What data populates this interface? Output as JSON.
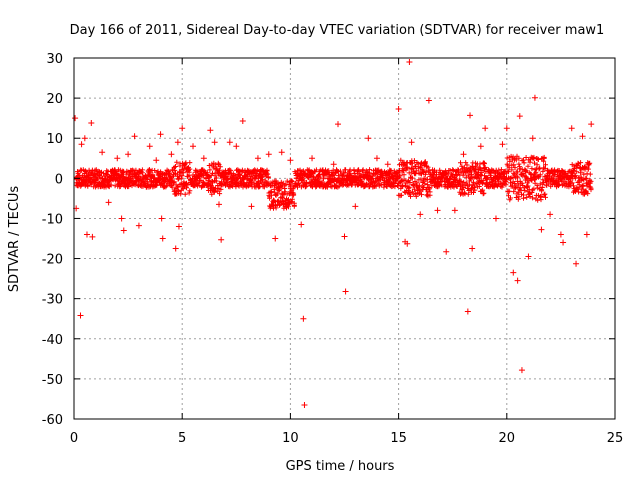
{
  "chart_data": {
    "type": "scatter",
    "title": "Day 166 of 2011, Sidereal Day-to-day VTEC variation (SDTVAR) for receiver maw1",
    "xlabel": "GPS time / hours",
    "ylabel": "SDTVAR / TECUs",
    "xlim": [
      0,
      25
    ],
    "ylim": [
      -60,
      30
    ],
    "x_ticks": [
      0,
      5,
      10,
      15,
      20,
      25
    ],
    "y_ticks": [
      30,
      20,
      10,
      0,
      -10,
      -20,
      -30,
      -40,
      -50,
      -60
    ],
    "x_tick_labels": [
      "0",
      "5",
      "10",
      "15",
      "20",
      "25"
    ],
    "y_tick_labels": [
      "30",
      "20",
      "10",
      "0",
      "-10",
      "-20",
      "-30",
      "-40",
      "-50",
      "-60"
    ],
    "grid": true,
    "marker": "plus",
    "color": "#ff0000",
    "series": [
      {
        "name": "SDTVAR",
        "core_band_note": "dense band of points between about -3 and +3 TECU across 0-24 h",
        "points": [
          [
            0.05,
            15
          ],
          [
            0.1,
            -7.5
          ],
          [
            0.3,
            -34.2
          ],
          [
            0.35,
            8.5
          ],
          [
            0.5,
            10
          ],
          [
            0.6,
            -14
          ],
          [
            0.8,
            13.8
          ],
          [
            0.85,
            -14.6
          ],
          [
            1.3,
            6.5
          ],
          [
            1.6,
            -6
          ],
          [
            2,
            5
          ],
          [
            2.2,
            -10
          ],
          [
            2.3,
            -13
          ],
          [
            2.5,
            6
          ],
          [
            2.8,
            10.5
          ],
          [
            3.0,
            -11.8
          ],
          [
            3.5,
            8
          ],
          [
            3.8,
            4.5
          ],
          [
            4.0,
            11
          ],
          [
            4.05,
            -10
          ],
          [
            4.1,
            -15
          ],
          [
            4.5,
            6
          ],
          [
            4.7,
            -17.5
          ],
          [
            4.8,
            9
          ],
          [
            4.85,
            -12
          ],
          [
            5.0,
            12.5
          ],
          [
            5.5,
            8
          ],
          [
            6.0,
            5
          ],
          [
            6.3,
            12
          ],
          [
            6.5,
            9
          ],
          [
            6.7,
            -6.5
          ],
          [
            6.8,
            -15.3
          ],
          [
            7.2,
            9
          ],
          [
            7.5,
            8
          ],
          [
            7.8,
            14.3
          ],
          [
            8.2,
            -7
          ],
          [
            8.5,
            5
          ],
          [
            9.0,
            6
          ],
          [
            9.3,
            -15
          ],
          [
            9.6,
            6.5
          ],
          [
            10.0,
            4.5
          ],
          [
            10.5,
            -11.5
          ],
          [
            10.6,
            -35
          ],
          [
            10.65,
            -56.5
          ],
          [
            11.0,
            5
          ],
          [
            11.5,
            -2
          ],
          [
            12.0,
            3.5
          ],
          [
            12.2,
            13.5
          ],
          [
            12.5,
            -14.5
          ],
          [
            12.55,
            -28.2
          ],
          [
            13.0,
            -7
          ],
          [
            13.6,
            10
          ],
          [
            14.0,
            5
          ],
          [
            14.5,
            3.5
          ],
          [
            15.0,
            17.3
          ],
          [
            15.3,
            -15.8
          ],
          [
            15.4,
            -16.3
          ],
          [
            15.5,
            29
          ],
          [
            15.6,
            9
          ],
          [
            16.0,
            -9
          ],
          [
            16.4,
            19.4
          ],
          [
            16.8,
            -8
          ],
          [
            17.2,
            -18.3
          ],
          [
            17.6,
            -8
          ],
          [
            18.0,
            6
          ],
          [
            18.2,
            -33.2
          ],
          [
            18.3,
            15.7
          ],
          [
            18.4,
            -17.5
          ],
          [
            18.8,
            8
          ],
          [
            19.0,
            12.5
          ],
          [
            19.5,
            -10
          ],
          [
            19.8,
            8.5
          ],
          [
            20.0,
            12.5
          ],
          [
            20.3,
            -23.5
          ],
          [
            20.5,
            -25.5
          ],
          [
            20.6,
            15.5
          ],
          [
            20.7,
            -47.8
          ],
          [
            21.0,
            -19.5
          ],
          [
            21.2,
            10
          ],
          [
            21.3,
            20.1
          ],
          [
            21.6,
            -12.8
          ],
          [
            22.0,
            -9
          ],
          [
            22.5,
            -14
          ],
          [
            22.6,
            -16
          ],
          [
            23.0,
            12.5
          ],
          [
            23.2,
            -21.3
          ],
          [
            23.5,
            10.5
          ],
          [
            23.7,
            -14
          ],
          [
            23.9,
            13.5
          ]
        ]
      }
    ]
  }
}
